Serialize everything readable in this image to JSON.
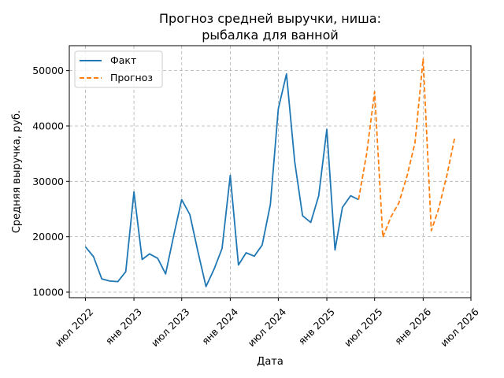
{
  "chart_data": {
    "type": "line",
    "title_lines": [
      "Прогноз средней выручки, ниша:",
      "рыбалка для ванной"
    ],
    "xlabel": "Дата",
    "ylabel": "Средняя выручка, руб.",
    "x_ticks": [
      {
        "date": "2022-07-01",
        "label": "июл 2022"
      },
      {
        "date": "2023-01-01",
        "label": "янв 2023"
      },
      {
        "date": "2023-07-01",
        "label": "июл 2023"
      },
      {
        "date": "2024-01-01",
        "label": "янв 2024"
      },
      {
        "date": "2024-07-01",
        "label": "июл 2024"
      },
      {
        "date": "2025-01-01",
        "label": "янв 2025"
      },
      {
        "date": "2025-07-01",
        "label": "июл 2025"
      },
      {
        "date": "2026-01-01",
        "label": "янв 2026"
      },
      {
        "date": "2026-07-01",
        "label": "июл 2026"
      }
    ],
    "y_ticks": [
      10000,
      20000,
      30000,
      40000,
      50000
    ],
    "xlim": [
      "2022-05-01",
      "2026-07-01"
    ],
    "ylim": [
      9000,
      54500
    ],
    "grid": true,
    "legend_position": "top-left",
    "series": [
      {
        "name": "Факт",
        "color": "#1f77b4",
        "style": "solid",
        "points": [
          [
            "2022-07-01",
            18200
          ],
          [
            "2022-08-01",
            16400
          ],
          [
            "2022-09-01",
            12400
          ],
          [
            "2022-10-01",
            12000
          ],
          [
            "2022-11-01",
            11900
          ],
          [
            "2022-12-01",
            13700
          ],
          [
            "2023-01-01",
            28100
          ],
          [
            "2023-02-01",
            15900
          ],
          [
            "2023-03-01",
            16900
          ],
          [
            "2023-04-01",
            16100
          ],
          [
            "2023-05-01",
            13300
          ],
          [
            "2023-06-01",
            20300
          ],
          [
            "2023-07-01",
            26700
          ],
          [
            "2023-08-01",
            24000
          ],
          [
            "2023-09-01",
            17200
          ],
          [
            "2023-10-01",
            11000
          ],
          [
            "2023-11-01",
            14200
          ],
          [
            "2023-12-01",
            17900
          ],
          [
            "2024-01-01",
            31100
          ],
          [
            "2024-02-01",
            14900
          ],
          [
            "2024-03-01",
            17100
          ],
          [
            "2024-04-01",
            16500
          ],
          [
            "2024-05-01",
            18500
          ],
          [
            "2024-06-01",
            25800
          ],
          [
            "2024-07-01",
            43100
          ],
          [
            "2024-08-01",
            49400
          ],
          [
            "2024-09-01",
            33600
          ],
          [
            "2024-10-01",
            23800
          ],
          [
            "2024-11-01",
            22600
          ],
          [
            "2024-12-01",
            27400
          ],
          [
            "2025-01-01",
            39400
          ],
          [
            "2025-02-01",
            17600
          ],
          [
            "2025-03-01",
            25300
          ],
          [
            "2025-04-01",
            27400
          ],
          [
            "2025-05-01",
            26700
          ]
        ]
      },
      {
        "name": "Прогноз",
        "color": "#ff7f0e",
        "style": "dashed",
        "points": [
          [
            "2025-05-01",
            26700
          ],
          [
            "2025-06-01",
            35000
          ],
          [
            "2025-07-01",
            46200
          ],
          [
            "2025-08-01",
            19900
          ],
          [
            "2025-09-01",
            23600
          ],
          [
            "2025-10-01",
            26100
          ],
          [
            "2025-11-01",
            31000
          ],
          [
            "2025-12-01",
            37000
          ],
          [
            "2026-01-01",
            52100
          ],
          [
            "2026-02-01",
            21100
          ],
          [
            "2026-03-01",
            25100
          ],
          [
            "2026-04-01",
            31100
          ],
          [
            "2026-05-01",
            38000
          ]
        ]
      }
    ]
  }
}
